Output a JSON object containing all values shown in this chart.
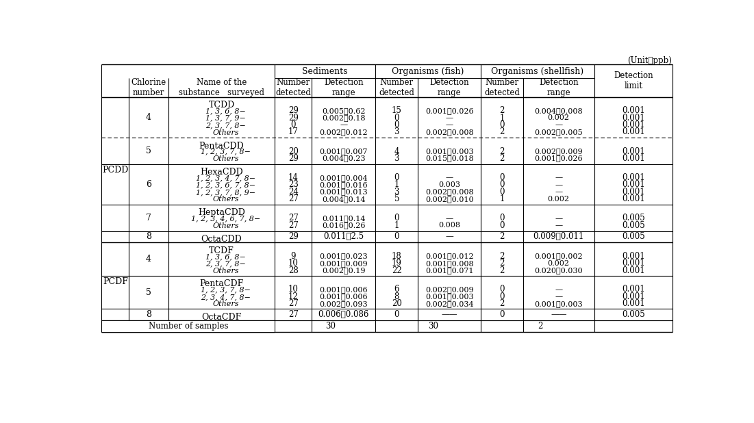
{
  "title_unit": "(Unit：ppb)",
  "col_headers_top": [
    "Sediments",
    "Organisms (fish)",
    "Organisms (shellfish)"
  ],
  "col_headers_sub": [
    "Chlorine\nnumber",
    "Name of the\nsubstance   surveyed",
    "Number\ndetected",
    "Detection\nrange",
    "Number\ndetected",
    "Detection\nrange",
    "Number\ndetected",
    "Detection\nrange",
    "Detection\nlimit"
  ],
  "rows": [
    {
      "group": "PCDD",
      "chlorine": "4",
      "name": "TCDD",
      "name_sub": [
        "1, 3, 6, 8−",
        "1, 3, 7, 9−",
        "2, 3, 7, 8−",
        "Others"
      ],
      "sed_num": [
        "29",
        "29",
        "0",
        "17"
      ],
      "sed_rng": [
        "0.005～0.62",
        "0.002～0.18",
        "—",
        "0.002～0.012"
      ],
      "fish_num": [
        "15",
        "0",
        "0",
        "3"
      ],
      "fish_rng": [
        "0.001～0.026",
        "—",
        "—",
        "0.002～0.008"
      ],
      "sh_num": [
        "2",
        "1",
        "0",
        "2"
      ],
      "sh_rng": [
        "0.004～0.008",
        "0.002",
        "—",
        "0.002～0.005"
      ],
      "det_lim": [
        "0.001",
        "0.001",
        "0.001",
        "0.001"
      ],
      "dashed_below": true
    },
    {
      "group": "",
      "chlorine": "5",
      "name": "PentaCDD",
      "name_sub": [
        "1, 2, 3, 7, 8−",
        "Others"
      ],
      "sed_num": [
        "20",
        "29"
      ],
      "sed_rng": [
        "0.001～0.007",
        "0.004～0.23"
      ],
      "fish_num": [
        "4",
        "3"
      ],
      "fish_rng": [
        "0.001～0.003",
        "0.015～0.018"
      ],
      "sh_num": [
        "2",
        "2"
      ],
      "sh_rng": [
        "0.002～0.009",
        "0.001～0.026"
      ],
      "det_lim": [
        "0.001",
        "0.001"
      ],
      "dashed_below": false
    },
    {
      "group": "",
      "chlorine": "6",
      "name": "HexaCDD",
      "name_sub": [
        "1, 2, 3, 4, 7, 8−",
        "1, 2, 3, 6, 7, 8−",
        "1, 2, 3, 7, 8, 9−",
        "Others"
      ],
      "sed_num": [
        "14",
        "23",
        "24",
        "27"
      ],
      "sed_rng": [
        "0.001～0.004",
        "0.001～0.016",
        "0.001～0.013",
        "0.004～0.14"
      ],
      "fish_num": [
        "0",
        "1",
        "3",
        "5"
      ],
      "fish_rng": [
        "—",
        "0.003",
        "0.002～0.008",
        "0.002～0.010"
      ],
      "sh_num": [
        "0",
        "0",
        "0",
        "1"
      ],
      "sh_rng": [
        "—",
        "—",
        "—",
        "0.002"
      ],
      "det_lim": [
        "0.001",
        "0.001",
        "0.001",
        "0.001"
      ],
      "dashed_below": false
    },
    {
      "group": "",
      "chlorine": "7",
      "name": "HeptaCDD",
      "name_sub": [
        "1, 2, 3, 4, 6, 7, 8−",
        "Others"
      ],
      "sed_num": [
        "27",
        "27"
      ],
      "sed_rng": [
        "0.011～0.14",
        "0.016～0.26"
      ],
      "fish_num": [
        "0",
        "1"
      ],
      "fish_rng": [
        "—",
        "0.008"
      ],
      "sh_num": [
        "0",
        "0"
      ],
      "sh_rng": [
        "—",
        "—"
      ],
      "det_lim": [
        "0.005",
        "0.005"
      ],
      "dashed_below": false
    },
    {
      "group": "",
      "chlorine": "8",
      "name": "OctaCDD",
      "name_sub": [],
      "sed_num": [
        "29"
      ],
      "sed_rng": [
        "0.011～2.5"
      ],
      "fish_num": [
        "0"
      ],
      "fish_rng": [
        "—"
      ],
      "sh_num": [
        "2"
      ],
      "sh_rng": [
        "0.009～0.011"
      ],
      "det_lim": [
        "0.005"
      ],
      "dashed_below": false
    },
    {
      "group": "PCDF",
      "chlorine": "4",
      "name": "TCDF",
      "name_sub": [
        "1, 3, 6, 8−",
        "2, 3, 7, 8−",
        "Others"
      ],
      "sed_num": [
        "9",
        "10",
        "28"
      ],
      "sed_rng": [
        "0.001～0.023",
        "0.001～0.009",
        "0.002～0.19"
      ],
      "fish_num": [
        "18",
        "19",
        "22"
      ],
      "fish_rng": [
        "0.001～0.012",
        "0.001～0.008",
        "0.001～0.071"
      ],
      "sh_num": [
        "2",
        "2",
        "2"
      ],
      "sh_rng": [
        "0.001～0.002",
        "0.002",
        "0.020～0.030"
      ],
      "det_lim": [
        "0.001",
        "0.001",
        "0.001"
      ],
      "dashed_below": false
    },
    {
      "group": "",
      "chlorine": "5",
      "name": "PentaCDF",
      "name_sub": [
        "1, 2, 3, 7, 8−",
        "2, 3, 4, 7, 8−",
        "Others"
      ],
      "sed_num": [
        "10",
        "12",
        "27"
      ],
      "sed_rng": [
        "0.001～0.006",
        "0.001～0.006",
        "0.002～0.093"
      ],
      "fish_num": [
        "6",
        "8",
        "20"
      ],
      "fish_rng": [
        "0.002～0.009",
        "0.001～0.003",
        "0.002～0.034"
      ],
      "sh_num": [
        "0",
        "0",
        "2"
      ],
      "sh_rng": [
        "—",
        "—",
        "0.001～0.003"
      ],
      "det_lim": [
        "0.001",
        "0.001",
        "0.001"
      ],
      "dashed_below": false
    },
    {
      "group": "",
      "chlorine": "8",
      "name": "OctaCDF",
      "name_sub": [],
      "sed_num": [
        "27"
      ],
      "sed_rng": [
        "0.006～0.086"
      ],
      "fish_num": [
        "0"
      ],
      "fish_rng": [
        "——"
      ],
      "sh_num": [
        "0"
      ],
      "sh_rng": [
        "——"
      ],
      "det_lim": [
        "0.005"
      ],
      "dashed_below": false
    }
  ],
  "footer_label": "Number of samples",
  "footer_sed": "30",
  "footer_fish": "30",
  "footer_shell": "2",
  "pcdd_rows": [
    0,
    1,
    2,
    3,
    4
  ],
  "pcdf_rows": [
    5,
    6,
    7
  ]
}
